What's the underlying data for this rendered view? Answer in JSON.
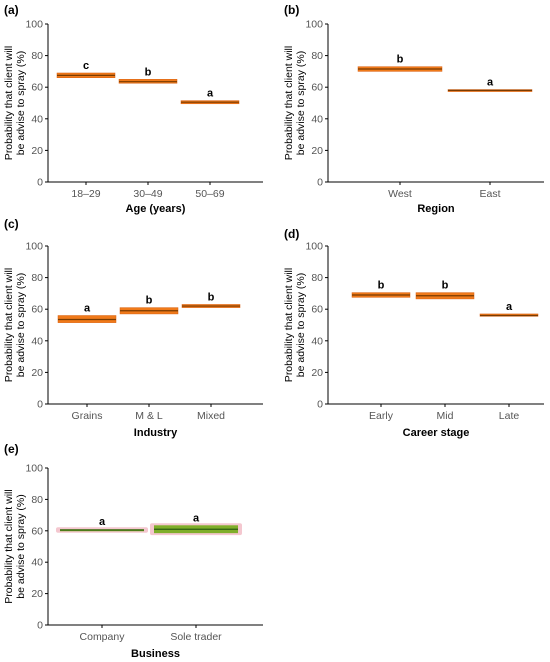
{
  "chart_data": [
    {
      "panel": "(a)",
      "type": "bar",
      "xlabel": "Age (years)",
      "ylabel": [
        "Probability that client will",
        "be advise to spray  (%)"
      ],
      "ylim": [
        0,
        100
      ],
      "yticks": [
        0,
        20,
        40,
        60,
        80,
        100
      ],
      "categories": [
        "18–29",
        "30–49",
        "50–69"
      ],
      "values": [
        67.5,
        63.5,
        50.5
      ],
      "ci_lower": [
        66,
        62.5,
        49.5
      ],
      "ci_upper": [
        69,
        65,
        51.5
      ],
      "significance": [
        "c",
        "b",
        "a"
      ]
    },
    {
      "panel": "(b)",
      "type": "bar",
      "xlabel": "Region",
      "ylabel": [
        "Probability that client will",
        "be advise to spray  (%)"
      ],
      "ylim": [
        0,
        100
      ],
      "yticks": [
        0,
        20,
        40,
        60,
        80,
        100
      ],
      "categories": [
        "West",
        "East"
      ],
      "values": [
        71.5,
        58
      ],
      "ci_lower": [
        70,
        57.5
      ],
      "ci_upper": [
        73,
        58.5
      ],
      "significance": [
        "b",
        "a"
      ]
    },
    {
      "panel": "(c)",
      "type": "bar",
      "xlabel": "Industry",
      "ylabel": [
        "Probability that client will",
        "be advise to spray  (%)"
      ],
      "ylim": [
        0,
        100
      ],
      "yticks": [
        0,
        20,
        40,
        60,
        80,
        100
      ],
      "categories": [
        "Grains",
        "M & L",
        "Mixed"
      ],
      "values": [
        53.5,
        59,
        62
      ],
      "ci_lower": [
        51.5,
        57,
        61
      ],
      "ci_upper": [
        56,
        61,
        63
      ],
      "significance": [
        "a",
        "b",
        "b"
      ]
    },
    {
      "panel": "(d)",
      "type": "bar",
      "xlabel": "Career stage",
      "ylabel": [
        "Probability that client will",
        "be advise to spray  (%)"
      ],
      "ylim": [
        0,
        100
      ],
      "yticks": [
        0,
        20,
        40,
        60,
        80,
        100
      ],
      "categories": [
        "Early",
        "Mid",
        "Late"
      ],
      "values": [
        69,
        68.5,
        56
      ],
      "ci_lower": [
        67.5,
        66.5,
        55.5
      ],
      "ci_upper": [
        70.5,
        70.5,
        57
      ],
      "significance": [
        "b",
        "b",
        "a"
      ]
    },
    {
      "panel": "(e)",
      "type": "bar",
      "xlabel": "Business",
      "ylabel": [
        "Probability that client will",
        "be advise to spray  (%)"
      ],
      "ylim": [
        0,
        100
      ],
      "yticks": [
        0,
        20,
        40,
        60,
        80,
        100
      ],
      "categories": [
        "Company",
        "Sole trader"
      ],
      "values": [
        60.5,
        61
      ],
      "ci_lower": [
        60,
        58.5
      ],
      "ci_upper": [
        61,
        63.5
      ],
      "significance": [
        "a",
        "a"
      ],
      "highlight": true
    }
  ],
  "colors": {
    "band": "#f07a1a",
    "band_edge": "#d95f0e",
    "mean_line": "#7a3b00",
    "highlight": "#f4c7cf",
    "highlight_band": "#7fae2a",
    "highlight_line": "#2e5e12"
  }
}
